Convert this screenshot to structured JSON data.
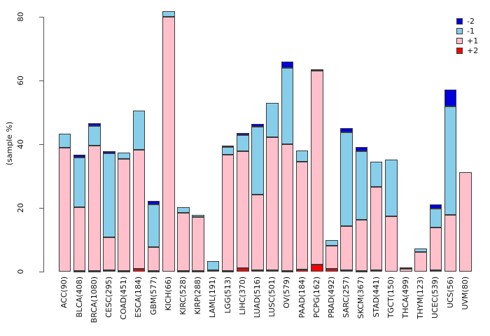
{
  "chart_data": {
    "type": "bar",
    "stacked": true,
    "title": "",
    "xlabel": "",
    "ylabel": "(sample %)",
    "ylim": [
      0,
      80
    ],
    "yticks": [
      0,
      20,
      40,
      60,
      80
    ],
    "grid": false,
    "legend_position": "top-right",
    "categories": [
      "ACC(90)",
      "BLCA(408)",
      "BRCA(1080)",
      "CESC(295)",
      "COAD(451)",
      "ESCA(184)",
      "GBM(577)",
      "KICH(66)",
      "KIRC(528)",
      "KIRP(288)",
      "LAML(191)",
      "LGG(513)",
      "LIHC(370)",
      "LUAD(516)",
      "LUSC(501)",
      "OV(579)",
      "PAAD(184)",
      "PCPG(162)",
      "PRAD(492)",
      "SARC(257)",
      "SKCM(367)",
      "STAD(441)",
      "TGCT(150)",
      "THCA(499)",
      "THYM(123)",
      "UCEC(539)",
      "UCS(56)",
      "UVM(80)"
    ],
    "series": [
      {
        "name": "+2",
        "color": "#FF0000",
        "values": [
          0,
          0.3,
          0.3,
          0.4,
          0.3,
          0.8,
          0.3,
          0,
          0.2,
          0.3,
          0,
          0.2,
          1.0,
          0.4,
          0.5,
          0.3,
          0.6,
          2.2,
          0.8,
          0.5,
          0.2,
          0.5,
          0,
          0,
          0,
          0.5,
          0,
          0
        ]
      },
      {
        "name": "+1",
        "color": "#FFC0CB",
        "values": [
          38.9,
          19.9,
          39.3,
          10.3,
          35.0,
          37.4,
          7.5,
          80.1,
          18.2,
          16.9,
          0.5,
          36.4,
          36.7,
          23.7,
          41.8,
          39.6,
          34.0,
          60.9,
          7.3,
          13.7,
          16.0,
          26.2,
          17.3,
          0.9,
          6.2,
          13.3,
          17.7,
          31.2
        ]
      },
      {
        "name": "-1",
        "color": "#87CEEB",
        "values": [
          4.3,
          15.6,
          6.2,
          26.4,
          2.0,
          12.4,
          13.4,
          1.7,
          1.8,
          0.5,
          2.7,
          2.6,
          5.1,
          21.3,
          10.6,
          24.1,
          3.4,
          0.4,
          1.9,
          29.5,
          21.6,
          7.7,
          17.9,
          0.5,
          1.1,
          6.0,
          34.1,
          0
        ]
      },
      {
        "name": "-2",
        "color": "#0000DC",
        "values": [
          0,
          0.9,
          0.7,
          0.8,
          0,
          0,
          1.0,
          0,
          0,
          0,
          0,
          0.3,
          0.7,
          0.9,
          0,
          2.0,
          0,
          0,
          0,
          1.3,
          1.3,
          0,
          0,
          0,
          0,
          1.4,
          5.3,
          0
        ]
      }
    ],
    "legend": [
      {
        "label": "-2",
        "color": "#0000DC"
      },
      {
        "label": "-1",
        "color": "#87CEEB"
      },
      {
        "label": "+1",
        "color": "#FFC0CB"
      },
      {
        "label": "+2",
        "color": "#FF0000"
      }
    ]
  }
}
